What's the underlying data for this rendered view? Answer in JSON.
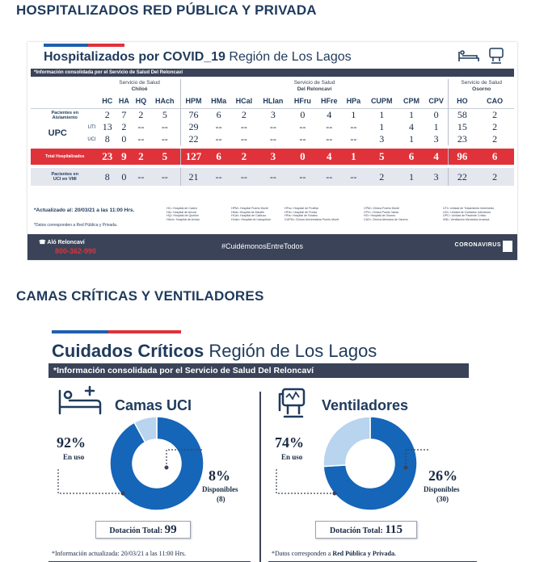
{
  "sections": {
    "hospitalized_heading": "HOSPITALIZADOS RED PÚBLICA Y PRIVADA",
    "critical_heading": "CAMAS CRÍTICAS Y VENTILADORES"
  },
  "hospital_card": {
    "title_bold": "Hospitalizados por COVID_19",
    "title_rest": " Región de Los Lagos",
    "band": "*Información consolidada por el Servicio de Salud Del Reloncaví",
    "groups": [
      {
        "line1": "Servicio de Salud",
        "line2": "Chiloé"
      },
      {
        "line1": "Servicio de Salud",
        "line2": "Del Reloncaví"
      },
      {
        "line1": "Servicio de Salud",
        "line2": "Osorno"
      }
    ],
    "columns": [
      "HC",
      "HA",
      "HQ",
      "HAch",
      "HPM",
      "HMa",
      "HCal",
      "HLlan",
      "HFru",
      "HFre",
      "HPa",
      "CUPM",
      "CPM",
      "CPV",
      "HO",
      "CAO"
    ],
    "rows": {
      "aislamiento": {
        "label1": "Pacientes en",
        "label2": "Aislamiento",
        "values": [
          "2",
          "7",
          "2",
          "5",
          "76",
          "6",
          "2",
          "3",
          "0",
          "4",
          "1",
          "1",
          "1",
          "0",
          "58",
          "2"
        ]
      },
      "upc": "UPC",
      "uti": {
        "label": "UTI",
        "values": [
          "13",
          "2",
          "--",
          "--",
          "29",
          "--",
          "--",
          "--",
          "--",
          "--",
          "--",
          "1",
          "4",
          "1",
          "15",
          "2"
        ]
      },
      "uci": {
        "label": "UCI",
        "values": [
          "8",
          "0",
          "--",
          "--",
          "22",
          "--",
          "--",
          "--",
          "--",
          "--",
          "--",
          "3",
          "1",
          "3",
          "23",
          "2"
        ]
      },
      "total": {
        "label": "Total Hospitalizados",
        "values": [
          "23",
          "9",
          "2",
          "5",
          "127",
          "6",
          "2",
          "3",
          "0",
          "4",
          "1",
          "5",
          "6",
          "4",
          "96",
          "6"
        ]
      },
      "vmi": {
        "label1": "Pacientes en",
        "label2": "UCI en VMI",
        "values": [
          "8",
          "0",
          "--",
          "--",
          "21",
          "--",
          "--",
          "--",
          "--",
          "--",
          "--",
          "2",
          "1",
          "3",
          "22",
          "2"
        ]
      }
    },
    "updated": "*Actualizado al: 20/03/21 a las 11:00 Hrs.",
    "note": "*Datos corresponden a Red Pública y Privada.",
    "legend": [
      [
        "HC= Hospital de Castro",
        "HA= Hospital de Ancud",
        "HQ= Hospital de Quellón",
        "HAch= Hospital de Achao"
      ],
      [
        "HPM= Hospital Puerto Montt",
        "HMa= Hospital de Maullín",
        "HCal= Hospital de Calbuco",
        "HLlan= Hospital de Llanquihue"
      ],
      [
        "HFru= Hospital de Frutillar",
        "HFre= Hospital de Fresia",
        "HPa= Hospital de Futaleu",
        "CUPM= Clínica Universitaria Puerto Montt"
      ],
      [
        "CPM= Clínica Puerto Montt",
        "CPV= Clínica Puerto Varas",
        "HO= Hospital de Osorno",
        "CAO= Clínica Alemana de Osorno"
      ],
      [
        "UTI= Unidad de Tratamiento Intermedio",
        "UCI= Unidad de Cuidados Intensivos",
        "UPC= Unidad de Paciente Crítico",
        "VMI= Ventilación Mecánica Invasiva"
      ]
    ],
    "footer": {
      "alo": "Aló Reloncaví",
      "phone": "800-362-990",
      "hashtag": "#CuidémonosEntreTodos",
      "corona": "CORONAVIRUS"
    }
  },
  "critical_card": {
    "title_bold": "Cuidados Críticos",
    "title_rest": " Región de Los Lagos",
    "band": "*Información consolidada por el Servicio de Salud Del Reloncaví",
    "uci": {
      "title": "Camas UCI",
      "used_pct": "92%",
      "used_label": "En uso",
      "free_pct": "8%",
      "free_label": "Disponibles",
      "free_count": "(8)",
      "total_label": "Dotación Total:",
      "total": "99"
    },
    "vent": {
      "title": "Ventiladores",
      "used_pct": "74%",
      "used_label": "En uso",
      "free_pct": "26%",
      "free_label": "Disponibles",
      "free_count": "(30)",
      "total_label": "Dotación Total:",
      "total": "115"
    },
    "updated": "*Información actualizada: 20/03/21 a las 11:00 Hrs.",
    "note_prefix": "*Datos corresponden a ",
    "note_bold": "Red Pública y Privada."
  },
  "chart_data": [
    {
      "type": "pie",
      "title": "Camas UCI",
      "categories": [
        "En uso",
        "Disponibles"
      ],
      "values": [
        92,
        8
      ],
      "total": 99,
      "colors": [
        "#1565b8",
        "#b8d4ee"
      ]
    },
    {
      "type": "pie",
      "title": "Ventiladores",
      "categories": [
        "En uso",
        "Disponibles"
      ],
      "values": [
        74,
        26
      ],
      "total": 115,
      "colors": [
        "#1565b8",
        "#b8d4ee"
      ]
    }
  ],
  "colors": {
    "navy": "#1f3a5c",
    "band": "#3a4358",
    "red": "#e0323a",
    "blue": "#1565b8",
    "lightblue": "#b8d4ee"
  }
}
